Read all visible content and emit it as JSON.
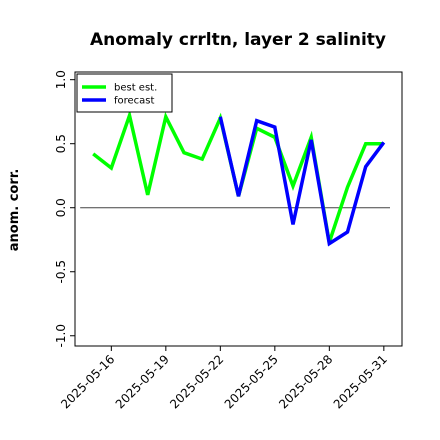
{
  "chart_data": {
    "type": "line",
    "title": "Anomaly crrltn, layer 2 salinity",
    "xlabel": "",
    "ylabel": "anom. corr.",
    "ylim": [
      -1.0,
      1.0
    ],
    "yticks": [
      "-1.0",
      "-0.5",
      "0.0",
      "0.5",
      "1.0"
    ],
    "ytick_values": [
      -1.0,
      -0.5,
      0.0,
      0.5,
      1.0
    ],
    "xticks": [
      "2025-05-16",
      "2025-05-19",
      "2025-05-22",
      "2025-05-25",
      "2025-05-28",
      "2025-05-31"
    ],
    "highlight_tick": "2025-05-22",
    "highlight_color": "#228b22",
    "xrange": [
      "2025-05-14",
      "2025-06-01"
    ],
    "x": [
      "2025-05-15",
      "2025-05-16",
      "2025-05-17",
      "2025-05-18",
      "2025-05-19",
      "2025-05-20",
      "2025-05-21",
      "2025-05-22",
      "2025-05-23",
      "2025-05-24",
      "2025-05-25",
      "2025-05-26",
      "2025-05-27",
      "2025-05-28",
      "2025-05-29",
      "2025-05-30",
      "2025-05-31"
    ],
    "reference_line": 0.0,
    "legend_position": "top-left",
    "grid": false,
    "series": [
      {
        "name": "best est.",
        "color": "#00ff00",
        "values": [
          0.42,
          0.31,
          0.72,
          0.1,
          0.71,
          0.43,
          0.38,
          0.7,
          0.09,
          0.62,
          0.55,
          0.17,
          0.55,
          -0.27,
          0.16,
          0.5,
          0.5
        ]
      },
      {
        "name": "forecast",
        "color": "#0000ff",
        "start_index": 7,
        "values": [
          null,
          null,
          null,
          null,
          null,
          null,
          null,
          0.71,
          0.09,
          0.68,
          0.63,
          -0.13,
          0.53,
          -0.28,
          -0.19,
          0.32,
          0.51
        ]
      }
    ]
  }
}
